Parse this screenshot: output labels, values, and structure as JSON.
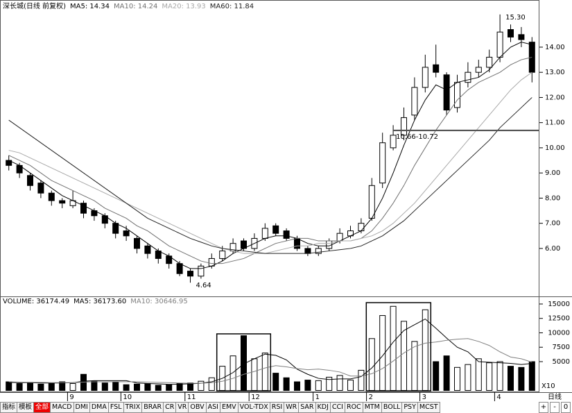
{
  "chart_data": [
    {
      "type": "candlestick",
      "title": "深长城(日线 前复权)",
      "open": [
        9.5,
        9.3,
        8.9,
        8.6,
        8.2,
        7.9,
        7.7,
        7.8,
        7.5,
        7.3,
        7.0,
        6.7,
        6.4,
        6.1,
        5.9,
        5.7,
        5.4,
        5.1,
        4.9,
        5.3,
        5.6,
        5.9,
        6.3,
        6.0,
        6.4,
        6.9,
        6.7,
        6.4,
        6.0,
        5.8,
        6.0,
        6.3,
        6.5,
        6.7,
        7.2,
        8.6,
        10.0,
        10.5,
        11.3,
        12.4,
        13.3,
        12.9,
        11.6,
        12.6,
        13.0,
        13.2,
        13.6,
        14.7,
        14.5,
        14.2
      ],
      "high": [
        9.7,
        9.4,
        9.0,
        8.7,
        8.3,
        8.0,
        8.3,
        7.9,
        7.6,
        7.4,
        7.1,
        6.9,
        6.5,
        6.2,
        6.0,
        5.8,
        5.5,
        5.2,
        5.4,
        5.8,
        6.1,
        6.4,
        6.4,
        6.6,
        7.0,
        7.0,
        6.8,
        6.5,
        6.1,
        6.1,
        6.4,
        6.8,
        6.9,
        7.2,
        8.8,
        10.6,
        10.9,
        11.6,
        12.8,
        13.7,
        14.1,
        13.0,
        12.9,
        13.4,
        13.5,
        13.9,
        15.3,
        14.9,
        14.8,
        14.4
      ],
      "low": [
        9.1,
        8.8,
        8.3,
        8.0,
        7.7,
        7.6,
        7.6,
        7.2,
        7.1,
        6.8,
        6.4,
        6.3,
        5.8,
        5.6,
        5.4,
        5.2,
        4.9,
        4.64,
        4.8,
        5.2,
        5.5,
        5.8,
        5.9,
        5.9,
        6.3,
        6.5,
        6.3,
        5.9,
        5.7,
        5.7,
        5.9,
        6.2,
        6.4,
        6.6,
        7.1,
        8.4,
        9.9,
        10.3,
        11.1,
        12.2,
        12.8,
        11.3,
        11.4,
        12.4,
        12.8,
        13.0,
        13.4,
        14.2,
        14.0,
        12.6
      ],
      "close": [
        9.3,
        9.0,
        8.5,
        8.2,
        7.9,
        7.8,
        7.9,
        7.4,
        7.3,
        7.0,
        6.6,
        6.5,
        6.0,
        5.8,
        5.6,
        5.4,
        5.0,
        4.9,
        5.3,
        5.6,
        5.9,
        6.2,
        6.0,
        6.4,
        6.8,
        6.6,
        6.4,
        6.0,
        5.8,
        6.0,
        6.3,
        6.6,
        6.7,
        7.0,
        8.5,
        10.2,
        10.5,
        11.2,
        12.4,
        13.2,
        13.0,
        11.5,
        12.6,
        13.0,
        13.2,
        13.6,
        14.6,
        14.4,
        14.3,
        13.0
      ],
      "series": [
        {
          "name": "MA5",
          "label": "MA5: 14.34",
          "color": "#000000",
          "values": [
            9.5,
            9.3,
            9.0,
            8.7,
            8.4,
            8.1,
            7.9,
            7.7,
            7.5,
            7.3,
            7.0,
            6.8,
            6.5,
            6.2,
            5.9,
            5.7,
            5.4,
            5.2,
            5.2,
            5.3,
            5.5,
            5.8,
            6.0,
            6.2,
            6.4,
            6.5,
            6.5,
            6.4,
            6.2,
            6.1,
            6.1,
            6.3,
            6.5,
            6.7,
            7.2,
            8.0,
            9.0,
            10.1,
            11.1,
            11.9,
            12.5,
            12.3,
            12.6,
            12.7,
            12.8,
            13.1,
            13.6,
            14.0,
            14.2,
            14.1
          ]
        },
        {
          "name": "MA10",
          "label": "MA10: 14.24",
          "color": "#707070",
          "values": [
            9.7,
            9.5,
            9.3,
            9.0,
            8.7,
            8.5,
            8.3,
            8.1,
            7.9,
            7.6,
            7.4,
            7.2,
            6.9,
            6.7,
            6.4,
            6.1,
            5.9,
            5.7,
            5.5,
            5.4,
            5.4,
            5.5,
            5.6,
            5.8,
            6.0,
            6.2,
            6.3,
            6.4,
            6.4,
            6.3,
            6.3,
            6.3,
            6.3,
            6.4,
            6.7,
            7.2,
            7.8,
            8.5,
            9.3,
            10.0,
            10.7,
            11.3,
            11.9,
            12.3,
            12.6,
            12.8,
            13.0,
            13.3,
            13.5,
            13.6
          ]
        },
        {
          "name": "MA20",
          "label": "MA20: 13.93",
          "color": "#a8a8a8",
          "values": [
            9.9,
            9.8,
            9.6,
            9.4,
            9.2,
            9.0,
            8.8,
            8.6,
            8.4,
            8.2,
            8.0,
            7.8,
            7.6,
            7.4,
            7.2,
            7.0,
            6.8,
            6.6,
            6.4,
            6.2,
            6.0,
            5.9,
            5.8,
            5.8,
            5.8,
            5.9,
            6.0,
            6.1,
            6.1,
            6.2,
            6.2,
            6.3,
            6.3,
            6.4,
            6.5,
            6.7,
            7.0,
            7.4,
            7.8,
            8.3,
            8.8,
            9.3,
            9.8,
            10.3,
            10.8,
            11.3,
            11.8,
            12.3,
            12.7,
            13.0
          ]
        },
        {
          "name": "MA60",
          "label": "MA60: 11.84",
          "color": "#202020",
          "values": [
            11.1,
            10.8,
            10.5,
            10.2,
            9.9,
            9.6,
            9.3,
            9.0,
            8.7,
            8.4,
            8.1,
            7.8,
            7.5,
            7.2,
            7.0,
            6.8,
            6.6,
            6.4,
            6.25,
            6.1,
            6.0,
            5.95,
            5.9,
            5.85,
            5.8,
            5.8,
            5.8,
            5.8,
            5.8,
            5.85,
            5.9,
            5.95,
            6.0,
            6.1,
            6.3,
            6.5,
            6.8,
            7.1,
            7.5,
            7.9,
            8.3,
            8.7,
            9.1,
            9.5,
            9.9,
            10.3,
            10.8,
            11.2,
            11.6,
            12.0
          ]
        }
      ],
      "ylim": [
        4.15,
        15.46
      ],
      "yticks": [
        {
          "value": 6,
          "label": "6.00"
        },
        {
          "value": 7,
          "label": "7.00"
        },
        {
          "value": 8,
          "label": "8.00"
        },
        {
          "value": 9,
          "label": "9.00"
        },
        {
          "value": 10,
          "label": "10.00"
        },
        {
          "value": 11,
          "label": "11.00"
        },
        {
          "value": 12,
          "label": "12.00"
        },
        {
          "value": 13,
          "label": "13.00"
        },
        {
          "value": 14,
          "label": "14.00"
        }
      ],
      "high_label": {
        "value": 15.3,
        "label": "15.30"
      },
      "low_label": {
        "value": 4.64,
        "label": "4.64"
      },
      "gap": {
        "label": "10.66-10.72",
        "low": 10.66,
        "high": 10.72
      }
    },
    {
      "type": "bar",
      "categories": [
        null,
        null,
        null,
        null,
        null,
        null,
        "9",
        null,
        null,
        null,
        null,
        "10",
        null,
        null,
        null,
        null,
        null,
        "11",
        null,
        null,
        null,
        null,
        null,
        "12",
        null,
        null,
        null,
        null,
        null,
        "1",
        null,
        null,
        null,
        null,
        "2",
        null,
        null,
        null,
        null,
        "3",
        null,
        null,
        null,
        null,
        null,
        null,
        "4",
        null,
        null,
        null
      ],
      "series": [
        {
          "name": "VOLUME",
          "label": "VOLUME: 36174.49",
          "color": "#000000",
          "values": [
            1500,
            1200,
            1400,
            1100,
            1300,
            1500,
            1200,
            2800,
            1600,
            1300,
            1500,
            1000,
            1100,
            1200,
            900,
            1000,
            1200,
            1300,
            1600,
            2200,
            4200,
            6000,
            9500,
            5500,
            6500,
            3000,
            2200,
            1500,
            1800,
            1700,
            2300,
            2600,
            1800,
            3500,
            9000,
            13000,
            14600,
            12000,
            8500,
            14000,
            5000,
            6000,
            4000,
            4500,
            5500,
            4800,
            5000,
            4200,
            4000,
            5000
          ]
        },
        {
          "name": "MA5",
          "label": "MA5: 36173.60",
          "color": "#000000",
          "values": [
            1400,
            1350,
            1350,
            1300,
            1300,
            1300,
            1350,
            1600,
            1700,
            1700,
            1700,
            1700,
            1300,
            1200,
            1150,
            1050,
            1100,
            1150,
            1250,
            1500,
            2100,
            3100,
            4600,
            5500,
            6300,
            6100,
            5300,
            3700,
            2800,
            2100,
            1900,
            2000,
            2000,
            2400,
            3900,
            6000,
            8400,
            10400,
            11400,
            12400,
            10800,
            9100,
            7500,
            6700,
            5000,
            4900,
            4800,
            4700,
            4500,
            4700
          ]
        },
        {
          "name": "MA10",
          "label": "MA10: 30646.95",
          "color": "#808080",
          "values": [
            1500,
            1450,
            1400,
            1400,
            1350,
            1350,
            1350,
            1450,
            1500,
            1500,
            1500,
            1500,
            1500,
            1450,
            1400,
            1350,
            1300,
            1250,
            1250,
            1350,
            1600,
            2100,
            2800,
            3300,
            3900,
            4300,
            4100,
            3800,
            3600,
            3700,
            3500,
            3200,
            2500,
            2500,
            2900,
            3800,
            5100,
            6500,
            7600,
            8200,
            8400,
            8700,
            8900,
            9000,
            8500,
            7800,
            6700,
            5800,
            5500,
            4900
          ]
        }
      ],
      "ylim": [
        0,
        15960
      ],
      "yticks": [
        5000,
        7500,
        10000,
        12500,
        15000
      ],
      "scale_label": "X10"
    }
  ],
  "footer": {
    "period": "日线",
    "tabs": [
      "指标",
      "模板",
      "全部",
      "MACD",
      "DMI",
      "DMA",
      "FSL",
      "TRIX",
      "BRAR",
      "CR",
      "VR",
      "OBV",
      "ASI",
      "EMV",
      "VOL-TDX",
      "RSI",
      "WR",
      "SAR",
      "KDJ",
      "CCI",
      "ROC",
      "MTM",
      "BOLL",
      "PSY",
      "MCST"
    ],
    "buttons": [
      "+",
      "-",
      "0"
    ]
  }
}
